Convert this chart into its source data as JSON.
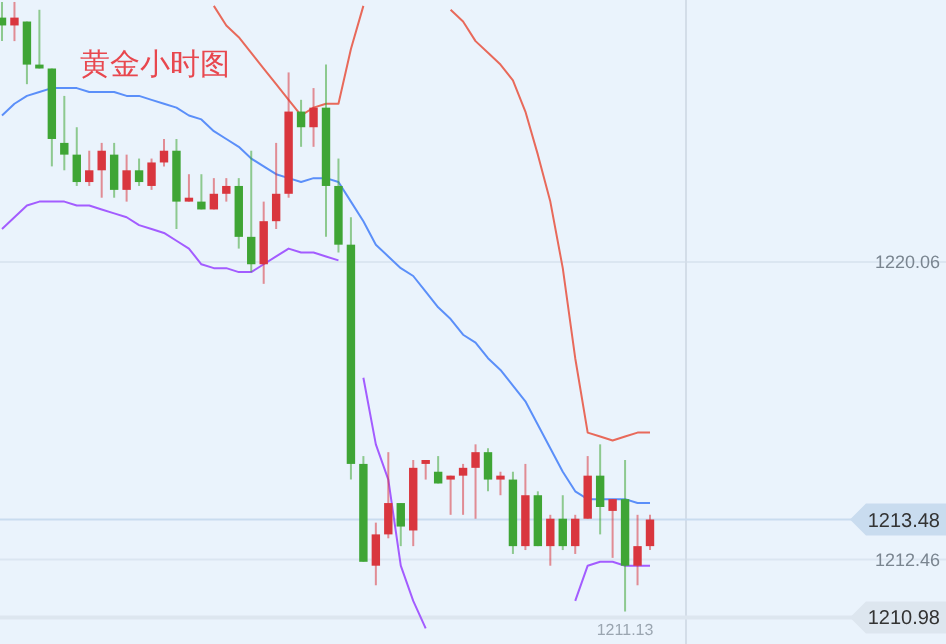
{
  "chart_data": {
    "type": "candlestick",
    "title": "黄金小时图",
    "categories": [
      null,
      null,
      null,
      null,
      null,
      null,
      null,
      null,
      null,
      null,
      null,
      null,
      null,
      null,
      null,
      null,
      null,
      null,
      null,
      null,
      null,
      null,
      null,
      null,
      null,
      null,
      null,
      null,
      null,
      null,
      null,
      null,
      null,
      null,
      null,
      null,
      null,
      null,
      null,
      null,
      null,
      null,
      null,
      null,
      null,
      null,
      null,
      null,
      null,
      null,
      null,
      null,
      null
    ],
    "ohlc": [
      [
        1226.3,
        1226.7,
        1225.7,
        1226.1
      ],
      [
        1226.1,
        1226.7,
        1225.7,
        1226.3
      ],
      [
        1226.2,
        1226.2,
        1224.6,
        1225.1
      ],
      [
        1225.1,
        1226.5,
        1225.0,
        1225.0
      ],
      [
        1225.0,
        1225.0,
        1222.5,
        1223.2
      ],
      [
        1223.1,
        1224.3,
        1222.4,
        1222.8
      ],
      [
        1222.8,
        1223.5,
        1222.0,
        1222.1
      ],
      [
        1222.1,
        1222.9,
        1222.0,
        1222.4
      ],
      [
        1222.4,
        1223.1,
        1221.7,
        1222.9
      ],
      [
        1222.8,
        1223.1,
        1221.7,
        1221.9
      ],
      [
        1221.9,
        1222.8,
        1221.6,
        1222.4
      ],
      [
        1222.4,
        1222.7,
        1222.0,
        1222.1
      ],
      [
        1222.0,
        1222.7,
        1221.9,
        1222.6
      ],
      [
        1222.6,
        1223.2,
        1222.5,
        1222.9
      ],
      [
        1222.9,
        1223.2,
        1220.9,
        1221.6
      ],
      [
        1221.6,
        1222.3,
        1221.6,
        1221.7
      ],
      [
        1221.6,
        1222.3,
        1221.4,
        1221.4
      ],
      [
        1221.4,
        1222.2,
        1221.4,
        1221.8
      ],
      [
        1221.8,
        1222.2,
        1221.6,
        1222.0
      ],
      [
        1222.0,
        1222.2,
        1220.4,
        1220.7
      ],
      [
        1220.7,
        1222.9,
        1219.8,
        1220.0
      ],
      [
        1220.0,
        1221.6,
        1219.5,
        1221.1
      ],
      [
        1221.1,
        1223.1,
        1220.9,
        1221.8
      ],
      [
        1221.8,
        1224.9,
        1221.7,
        1223.9
      ],
      [
        1223.9,
        1224.2,
        1223.0,
        1223.5
      ],
      [
        1223.5,
        1224.5,
        1223.0,
        1224.0
      ],
      [
        1224.0,
        1225.1,
        1220.7,
        1222.0
      ],
      [
        1222.0,
        1222.7,
        1220.3,
        1220.5
      ],
      [
        1220.5,
        1221.2,
        1214.5,
        1214.9
      ],
      [
        1214.9,
        1215.1,
        1212.4,
        1212.4
      ],
      [
        1212.3,
        1213.4,
        1211.8,
        1213.1
      ],
      [
        1213.1,
        1215.2,
        1213.0,
        1213.9
      ],
      [
        1213.9,
        1213.9,
        1212.8,
        1213.3
      ],
      [
        1213.2,
        1215.0,
        1212.8,
        1214.8
      ],
      [
        1214.9,
        1215.0,
        1214.5,
        1215.0
      ],
      [
        1214.7,
        1215.1,
        1214.4,
        1214.4
      ],
      [
        1214.5,
        1214.6,
        1213.6,
        1214.6
      ],
      [
        1214.6,
        1214.9,
        1213.6,
        1214.8
      ],
      [
        1214.8,
        1215.4,
        1213.5,
        1215.2
      ],
      [
        1215.2,
        1215.3,
        1214.2,
        1214.5
      ],
      [
        1214.5,
        1214.7,
        1214.1,
        1214.6
      ],
      [
        1214.5,
        1214.7,
        1212.6,
        1212.8
      ],
      [
        1212.8,
        1214.9,
        1212.7,
        1214.1
      ],
      [
        1214.1,
        1214.2,
        1212.8,
        1212.8
      ],
      [
        1212.8,
        1213.6,
        1212.3,
        1213.5
      ],
      [
        1213.5,
        1214.1,
        1212.7,
        1212.8
      ],
      [
        1212.8,
        1213.6,
        1212.6,
        1213.5
      ],
      [
        1213.5,
        1215.1,
        1213.5,
        1214.6
      ],
      [
        1214.6,
        1215.4,
        1213.1,
        1213.8
      ],
      [
        1213.7,
        1214.0,
        1212.5,
        1214.0
      ],
      [
        1214.0,
        1215.0,
        1211.13,
        1212.3
      ],
      [
        1212.3,
        1213.6,
        1211.8,
        1212.8
      ],
      [
        1212.8,
        1213.6,
        1212.7,
        1213.48
      ]
    ],
    "series": [
      {
        "type": "line",
        "color": "#e8695a",
        "values": [
          null,
          null,
          null,
          null,
          null,
          null,
          null,
          null,
          null,
          null,
          null,
          null,
          null,
          null,
          null,
          null,
          null,
          1226.6,
          1226.1,
          1225.8,
          1225.4,
          1225.0,
          1224.6,
          1224.2,
          1223.8,
          1224.0,
          1224.1,
          1224.1,
          1225.5,
          1226.6,
          null,
          null,
          null,
          null,
          null,
          null,
          1226.5,
          1226.2,
          1225.7,
          1225.4,
          1225.1,
          1224.7,
          1223.9,
          1222.8,
          1221.6,
          1219.9,
          1217.6,
          1215.7,
          1215.6,
          1215.5,
          1215.6,
          1215.7,
          1215.7
        ]
      },
      {
        "type": "line",
        "color": "#5b8ff9",
        "values": [
          1223.8,
          1224.1,
          1224.3,
          1224.4,
          1224.5,
          1224.5,
          1224.5,
          1224.4,
          1224.4,
          1224.4,
          1224.3,
          1224.3,
          1224.2,
          1224.1,
          1224.0,
          1223.8,
          1223.7,
          1223.4,
          1223.2,
          1223.0,
          1222.7,
          1222.5,
          1222.3,
          1222.2,
          1222.1,
          1222.2,
          1222.2,
          1222.1,
          1221.6,
          1221.1,
          1220.5,
          1220.2,
          1219.9,
          1219.7,
          1219.3,
          1218.9,
          1218.6,
          1218.2,
          1218.0,
          1217.6,
          1217.3,
          1216.9,
          1216.5,
          1215.9,
          1215.3,
          1214.7,
          1214.2,
          1214.0,
          1214.0,
          1214.0,
          1214.0,
          1213.9,
          1213.9
        ]
      },
      {
        "type": "line",
        "color": "#a35cff",
        "values": [
          1220.9,
          1221.2,
          1221.5,
          1221.6,
          1221.6,
          1221.6,
          1221.5,
          1221.5,
          1221.4,
          1221.3,
          1221.2,
          1221.0,
          1220.9,
          1220.8,
          1220.6,
          1220.4,
          1220.0,
          1219.9,
          1219.9,
          1219.8,
          1219.8,
          1220.0,
          1220.2,
          1220.4,
          1220.3,
          1220.3,
          1220.2,
          1220.1,
          null,
          1217.1,
          1215.4,
          1214.5,
          1212.3,
          1211.4,
          1210.7,
          null,
          null,
          null,
          null,
          null,
          null,
          null,
          null,
          null,
          null,
          null,
          1211.4,
          1212.3,
          1212.4,
          1212.4,
          1212.3,
          1212.3,
          1212.3
        ]
      }
    ],
    "ylim": [
      1210.3,
      1226.75
    ],
    "yticks": [
      1220.06,
      1212.46
    ],
    "grid": "y",
    "ref_lines": [
      {
        "axis": "y",
        "value": 1213.48,
        "label": "1213.48",
        "color": "#c9dcef"
      },
      {
        "axis": "y",
        "value": 1210.98,
        "label": "1210.98",
        "color": "#dde6ef"
      }
    ],
    "annotations": [
      {
        "text": "1211.13",
        "y": 1211.13
      }
    ]
  }
}
